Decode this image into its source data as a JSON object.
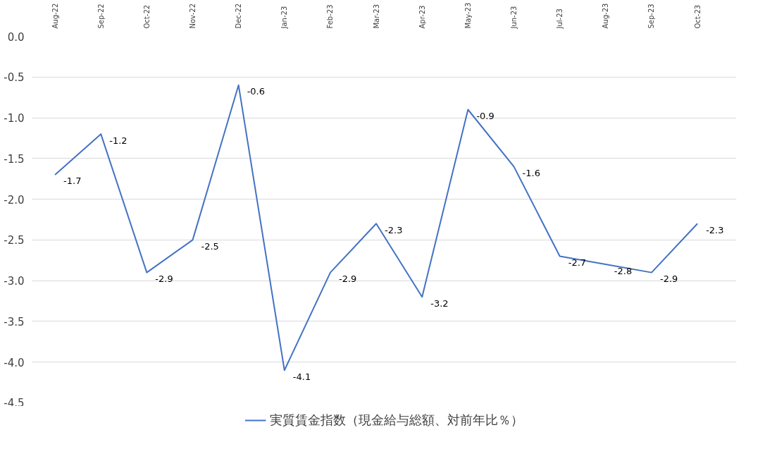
{
  "chart_data": {
    "type": "line",
    "categories": [
      "Aug-22",
      "Sep-22",
      "Oct-22",
      "Nov-22",
      "Dec-22",
      "Jan-23",
      "Feb-23",
      "Mar-23",
      "Apr-23",
      "May-23",
      "Jun-23",
      "Jul-23",
      "Aug-23",
      "Sep-23",
      "Oct-23"
    ],
    "series": [
      {
        "name": "実質賃金指数（現金給与総額、対前年比％）",
        "color": "#4472c4",
        "values": [
          -1.7,
          -1.2,
          -2.9,
          -2.5,
          -0.6,
          -4.1,
          -2.9,
          -2.3,
          -3.2,
          -0.9,
          -1.6,
          -2.7,
          -2.8,
          -2.9,
          -2.3
        ]
      }
    ],
    "ylim": [
      -4.5,
      0
    ],
    "yticks": [
      {
        "value": 0,
        "label": "0.0"
      },
      {
        "value": -0.5,
        "label": "-0.5"
      },
      {
        "value": -1,
        "label": "-1.0"
      },
      {
        "value": -1.5,
        "label": "-1.5"
      },
      {
        "value": -2,
        "label": "-2.0"
      },
      {
        "value": -2.5,
        "label": "-2.5"
      },
      {
        "value": -3,
        "label": "-3.0"
      },
      {
        "value": -3.5,
        "label": "-3.5"
      },
      {
        "value": -4,
        "label": "-4.0"
      },
      {
        "value": -4.5,
        "label": "-4.5"
      }
    ],
    "grid": "y",
    "legend": "bottom",
    "data_labels": true,
    "marker": "none",
    "line_style": "solid"
  }
}
